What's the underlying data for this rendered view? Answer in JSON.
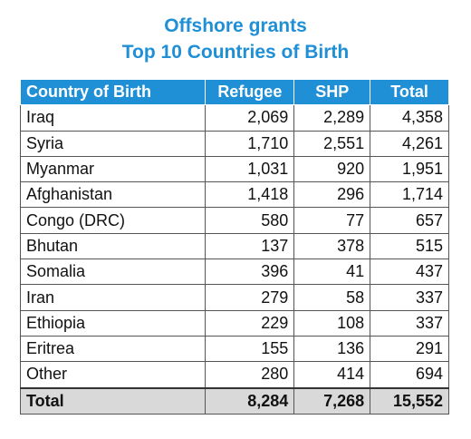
{
  "title": {
    "line1": "Offshore grants",
    "line2": "Top 10 Countries of Birth"
  },
  "colors": {
    "accent": "#1f8fd6",
    "header_text": "#ffffff",
    "total_row_bg": "#d9d9d9"
  },
  "chart_data": {
    "type": "table",
    "title": "Offshore grants Top 10 Countries of Birth",
    "columns": [
      "Country of Birth",
      "Refugee",
      "SHP",
      "Total"
    ],
    "rows": [
      [
        "Iraq",
        "2,069",
        "2,289",
        "4,358"
      ],
      [
        "Syria",
        "1,710",
        "2,551",
        "4,261"
      ],
      [
        "Myanmar",
        "1,031",
        "920",
        "1,951"
      ],
      [
        "Afghanistan",
        "1,418",
        "296",
        "1,714"
      ],
      [
        "Congo (DRC)",
        "580",
        "77",
        "657"
      ],
      [
        "Bhutan",
        "137",
        "378",
        "515"
      ],
      [
        "Somalia",
        "396",
        "41",
        "437"
      ],
      [
        "Iran",
        "279",
        "58",
        "337"
      ],
      [
        "Ethiopia",
        "229",
        "108",
        "337"
      ],
      [
        "Eritrea",
        "155",
        "136",
        "291"
      ],
      [
        "Other",
        "280",
        "414",
        "694"
      ]
    ],
    "total_row": [
      "Total",
      "8,284",
      "7,268",
      "15,552"
    ]
  }
}
